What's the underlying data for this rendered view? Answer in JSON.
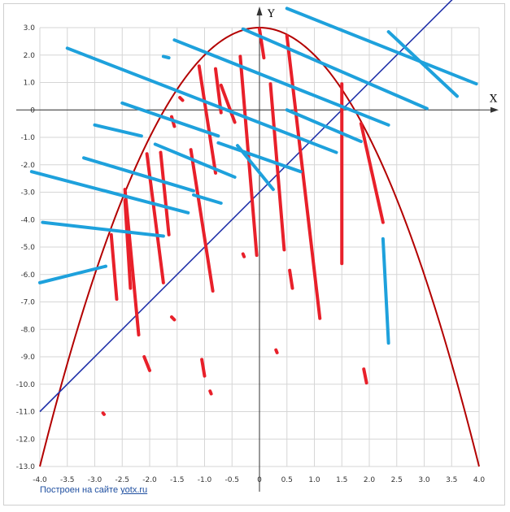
{
  "chart_data": {
    "type": "line",
    "xlabel": "X",
    "ylabel": "Y",
    "xlim": [
      -4.0,
      4.0
    ],
    "ylim": [
      -13.0,
      3.0
    ],
    "x_ticks": [
      "-4.0",
      "-3.5",
      "-3.0",
      "-2.5",
      "-2.0",
      "-1.5",
      "-1.0",
      "-0.5",
      "0",
      "0.5",
      "1.0",
      "1.5",
      "2.0",
      "2.5",
      "3.0",
      "3.5",
      "4.0"
    ],
    "y_ticks": [
      "3.0",
      "2.0",
      "1.0",
      "0",
      "-1.0",
      "-2.0",
      "-3.0",
      "-4.0",
      "-5.0",
      "-6.0",
      "-7.0",
      "-8.0",
      "-9.0",
      "-10.0",
      "-11.0",
      "-12.0",
      "-13.0"
    ],
    "grid": true,
    "colors": {
      "parabola": "#b30000",
      "line": "#2233aa",
      "red_segments": "#e8202a",
      "blue_segments": "#1ea1dc",
      "grid": "#d6d6d6"
    },
    "curves": [
      {
        "kind": "parabola",
        "formula": "y = 3 - x^2",
        "x_range": [
          -4.0,
          4.0
        ]
      },
      {
        "kind": "straight",
        "formula": "y = 2x - 3",
        "x_range": [
          -4.0,
          4.0
        ]
      }
    ],
    "red_segments": [
      [
        [
          0.0,
          2.95
        ],
        [
          0.08,
          1.9
        ]
      ],
      [
        [
          0.5,
          2.7
        ],
        [
          1.1,
          -7.6
        ]
      ],
      [
        [
          0.2,
          0.95
        ],
        [
          0.45,
          -5.1
        ]
      ],
      [
        [
          -0.35,
          1.95
        ],
        [
          -0.05,
          -5.3
        ]
      ],
      [
        [
          -0.7,
          0.9
        ],
        [
          -0.45,
          -0.45
        ]
      ],
      [
        [
          -0.8,
          1.5
        ],
        [
          -0.7,
          -0.1
        ]
      ],
      [
        [
          -1.1,
          1.6
        ],
        [
          -0.8,
          -2.3
        ]
      ],
      [
        [
          -1.25,
          -1.45
        ],
        [
          -0.85,
          -6.6
        ]
      ],
      [
        [
          -1.6,
          -0.25
        ],
        [
          -1.55,
          -0.6
        ]
      ],
      [
        [
          -1.8,
          -1.55
        ],
        [
          -1.65,
          -4.55
        ]
      ],
      [
        [
          -2.05,
          -1.6
        ],
        [
          -1.75,
          -6.3
        ]
      ],
      [
        [
          -2.45,
          -2.9
        ],
        [
          -2.2,
          -8.2
        ]
      ],
      [
        [
          -2.45,
          -3.3
        ],
        [
          -2.35,
          -6.5
        ]
      ],
      [
        [
          -2.7,
          -4.55
        ],
        [
          -2.6,
          -6.9
        ]
      ],
      [
        [
          -2.1,
          -9.0
        ],
        [
          -2.0,
          -9.5
        ]
      ],
      [
        [
          -1.05,
          -9.1
        ],
        [
          -1.0,
          -9.7
        ]
      ],
      [
        [
          -0.9,
          -10.25
        ],
        [
          -0.88,
          -10.35
        ]
      ],
      [
        [
          -0.3,
          -5.25
        ],
        [
          -0.28,
          -5.35
        ]
      ],
      [
        [
          0.3,
          -8.75
        ],
        [
          0.32,
          -8.85
        ]
      ],
      [
        [
          0.55,
          -5.85
        ],
        [
          0.6,
          -6.5
        ]
      ],
      [
        [
          1.5,
          0.95
        ],
        [
          1.5,
          -5.6
        ]
      ],
      [
        [
          1.85,
          -0.5
        ],
        [
          2.25,
          -4.1
        ]
      ],
      [
        [
          1.9,
          -9.45
        ],
        [
          1.95,
          -9.95
        ]
      ],
      [
        [
          -1.45,
          0.45
        ],
        [
          -1.4,
          0.35
        ]
      ],
      [
        [
          -1.6,
          -7.55
        ],
        [
          -1.55,
          -7.65
        ]
      ],
      [
        [
          -2.85,
          -11.05
        ],
        [
          -2.83,
          -11.1
        ]
      ]
    ],
    "blue_segments": [
      [
        [
          0.5,
          3.7
        ],
        [
          3.95,
          0.95
        ]
      ],
      [
        [
          2.35,
          2.85
        ],
        [
          3.6,
          0.5
        ]
      ],
      [
        [
          -0.3,
          2.95
        ],
        [
          3.05,
          0.05
        ]
      ],
      [
        [
          -1.55,
          2.55
        ],
        [
          2.35,
          -0.55
        ]
      ],
      [
        [
          -3.5,
          2.25
        ],
        [
          1.4,
          -1.55
        ]
      ],
      [
        [
          -2.5,
          0.25
        ],
        [
          -0.75,
          -0.95
        ]
      ],
      [
        [
          0.5,
          0.0
        ],
        [
          1.85,
          -1.15
        ]
      ],
      [
        [
          -3.0,
          -0.55
        ],
        [
          -2.15,
          -0.95
        ]
      ],
      [
        [
          -1.9,
          -1.25
        ],
        [
          -0.45,
          -2.45
        ]
      ],
      [
        [
          -0.75,
          -1.2
        ],
        [
          0.75,
          -2.25
        ]
      ],
      [
        [
          -3.2,
          -1.75
        ],
        [
          -1.2,
          -2.95
        ]
      ],
      [
        [
          -0.4,
          -1.3
        ],
        [
          0.25,
          -2.9
        ]
      ],
      [
        [
          -4.15,
          -2.25
        ],
        [
          -1.3,
          -3.75
        ]
      ],
      [
        [
          -1.2,
          -3.1
        ],
        [
          -0.7,
          -3.4
        ]
      ],
      [
        [
          -3.95,
          -4.1
        ],
        [
          -1.75,
          -4.6
        ]
      ],
      [
        [
          -4.0,
          -6.3
        ],
        [
          -2.8,
          -5.7
        ]
      ],
      [
        [
          2.25,
          -4.7
        ],
        [
          2.35,
          -8.5
        ]
      ],
      [
        [
          -1.75,
          1.95
        ],
        [
          -1.65,
          1.9
        ]
      ]
    ]
  },
  "credit": {
    "prefix": "Построен на сайте ",
    "link": "yotx.ru"
  }
}
